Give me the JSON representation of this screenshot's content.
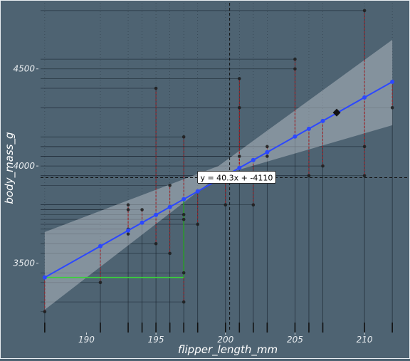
{
  "chart_data": {
    "type": "scatter",
    "title": "",
    "xlabel": "flipper_length_mm",
    "ylabel": "body_mass_g",
    "xlim": [
      186.7,
      212.3
    ],
    "ylim": [
      3150,
      4840
    ],
    "x_ticks": [
      190,
      195,
      200,
      205,
      210
    ],
    "x_tick_labels": [
      "190",
      "195",
      "200",
      "205",
      "210"
    ],
    "y_ticks": [
      3500,
      4000,
      4500
    ],
    "y_tick_labels": [
      "3500",
      "4000",
      "4500"
    ],
    "grid": false,
    "regression": {
      "slope": 40.3,
      "intercept": -4110,
      "label": "y = 40.3x + -4110",
      "label_at": {
        "x": 200.8,
        "y": 3940
      },
      "ci_left": {
        "x": 187,
        "lower": 3260,
        "upper": 3660
      },
      "ci_mid": {
        "x": 199.5,
        "lower": 3950,
        "upper": 4000
      },
      "ci_right": {
        "x": 212,
        "lower": 4210,
        "upper": 4650
      }
    },
    "mean_point": {
      "x": 200.3,
      "y": 3940
    },
    "highlight_point": {
      "x": 208,
      "y": 4275
    },
    "slope_triangle": {
      "x1": 187,
      "x2": 197,
      "y": 3426
    },
    "observations": [
      {
        "x": 187,
        "y": 3250
      },
      {
        "x": 191,
        "y": 3400
      },
      {
        "x": 193,
        "y": 3650
      },
      {
        "x": 193,
        "y": 3675
      },
      {
        "x": 193,
        "y": 3775
      },
      {
        "x": 193,
        "y": 3800
      },
      {
        "x": 194,
        "y": 3775
      },
      {
        "x": 195,
        "y": 3600
      },
      {
        "x": 195,
        "y": 4400
      },
      {
        "x": 196,
        "y": 3550
      },
      {
        "x": 196,
        "y": 3900
      },
      {
        "x": 197,
        "y": 3300
      },
      {
        "x": 197,
        "y": 3450
      },
      {
        "x": 197,
        "y": 3725
      },
      {
        "x": 197,
        "y": 3750
      },
      {
        "x": 197,
        "y": 4150
      },
      {
        "x": 198,
        "y": 3700
      },
      {
        "x": 200,
        "y": 3800
      },
      {
        "x": 201,
        "y": 4050
      },
      {
        "x": 201,
        "y": 4300
      },
      {
        "x": 201,
        "y": 4450
      },
      {
        "x": 202,
        "y": 3800
      },
      {
        "x": 203,
        "y": 4050
      },
      {
        "x": 203,
        "y": 4100
      },
      {
        "x": 205,
        "y": 4500
      },
      {
        "x": 205,
        "y": 4550
      },
      {
        "x": 206,
        "y": 3950
      },
      {
        "x": 207,
        "y": 4000
      },
      {
        "x": 210,
        "y": 3950
      },
      {
        "x": 210,
        "y": 4100
      },
      {
        "x": 210,
        "y": 4800
      },
      {
        "x": 212,
        "y": 4300
      }
    ]
  }
}
